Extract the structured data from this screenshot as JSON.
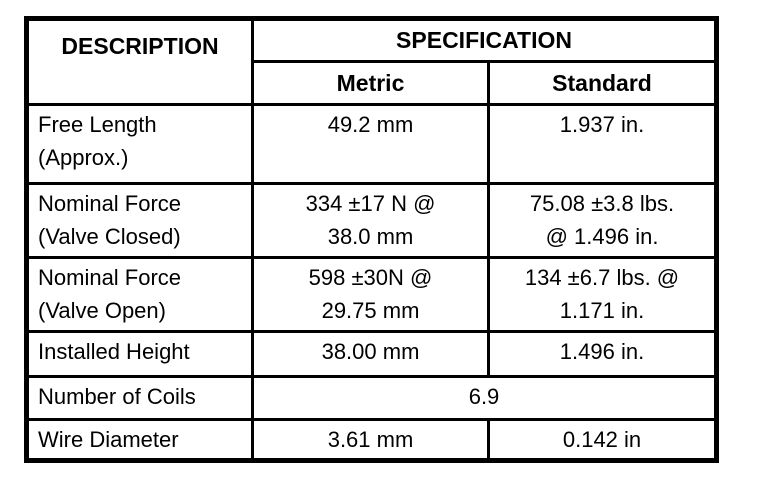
{
  "table": {
    "headers": {
      "description": "DESCRIPTION",
      "specification": "SPECIFICATION",
      "metric": "Metric",
      "standard": "Standard"
    },
    "rows": [
      {
        "description": "Free Length\n(Approx.)",
        "metric": "49.2 mm",
        "standard": "1.937 in."
      },
      {
        "description": "Nominal Force\n(Valve Closed)",
        "metric": "334 ±17 N @\n38.0 mm",
        "standard": "75.08 ±3.8 lbs.\n@ 1.496 in."
      },
      {
        "description": "Nominal Force\n(Valve Open)",
        "metric": "598 ±30N @\n29.75 mm",
        "standard": "134 ±6.7 lbs. @\n1.171 in."
      },
      {
        "description": "Installed Height",
        "metric": "38.00 mm",
        "standard": "1.496 in."
      },
      {
        "description": "Number of Coils",
        "value": "6.9"
      },
      {
        "description": "Wire Diameter",
        "metric": "3.61 mm",
        "standard": "0.142 in"
      }
    ]
  }
}
